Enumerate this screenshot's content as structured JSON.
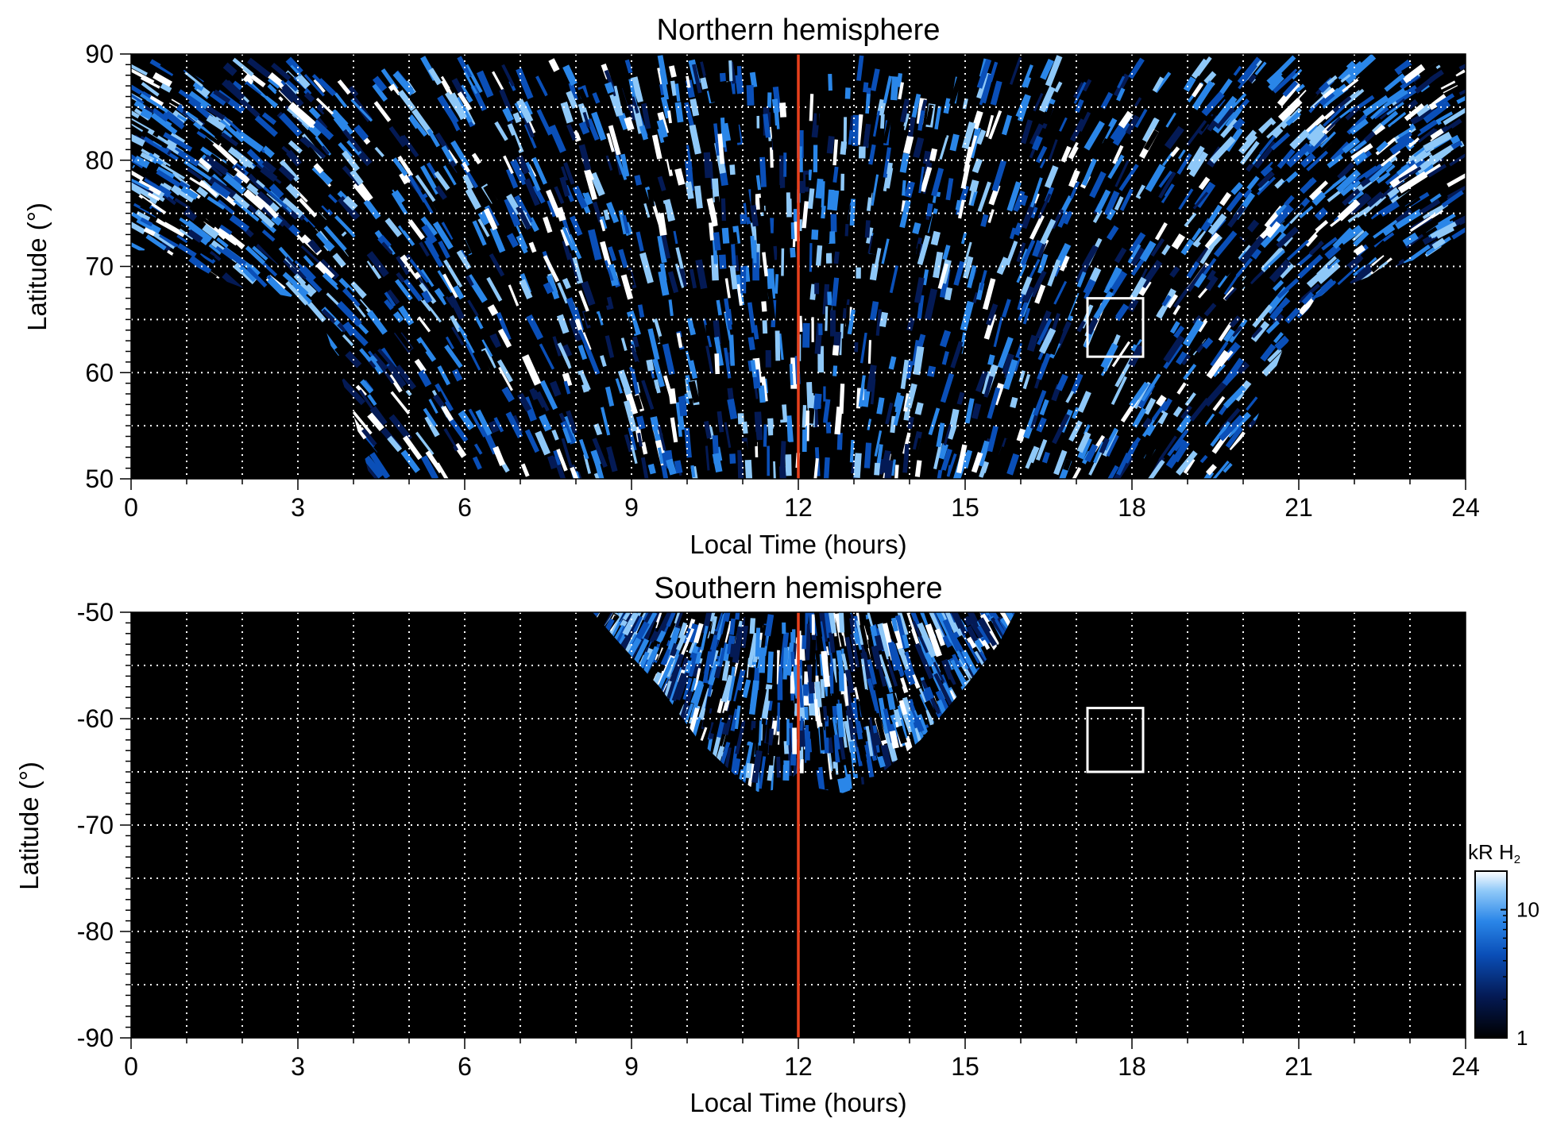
{
  "chart_data": [
    {
      "type": "heatmap",
      "title": "Northern hemisphere",
      "xlabel": "Local Time (hours)",
      "ylabel": "Latitude (°)",
      "xlim": [
        0,
        24
      ],
      "ylim": [
        50,
        90
      ],
      "xticks": [
        0,
        3,
        6,
        9,
        12,
        15,
        18,
        21,
        24
      ],
      "yticks": [
        50,
        60,
        70,
        80,
        90
      ],
      "grid_x": [
        1,
        2,
        3,
        4,
        5,
        6,
        7,
        8,
        9,
        10,
        11,
        12,
        13,
        14,
        15,
        16,
        17,
        18,
        19,
        20,
        21,
        22,
        23
      ],
      "grid_y": [
        55,
        60,
        65,
        70,
        75,
        80,
        85
      ],
      "grid": true,
      "noon_line_lt": 12,
      "noon_line_color": "#e8401c",
      "highlight_box": {
        "lt": [
          17.2,
          18.2
        ],
        "lat": [
          61.5,
          67
        ]
      },
      "coverage": {
        "inner_edge": [
          [
            0,
            71.5
          ],
          [
            0.5,
            71.5
          ],
          [
            1,
            70.5
          ],
          [
            1.5,
            69
          ],
          [
            2,
            68
          ],
          [
            2.5,
            67.5
          ],
          [
            3,
            67
          ],
          [
            3.5,
            64
          ],
          [
            4,
            56
          ],
          [
            4.3,
            50
          ],
          [
            19.8,
            50
          ],
          [
            20.2,
            55
          ],
          [
            20.7,
            62
          ],
          [
            21.3,
            67
          ],
          [
            22,
            68.5
          ],
          [
            23,
            70.5
          ],
          [
            24,
            71.5
          ]
        ],
        "outer_edge": 89
      }
    },
    {
      "type": "heatmap",
      "title": "Southern hemisphere",
      "xlabel": "Local Time (hours)",
      "ylabel": "Latitude (°)",
      "xlim": [
        0,
        24
      ],
      "ylim": [
        -90,
        -50
      ],
      "xticks": [
        0,
        3,
        6,
        9,
        12,
        15,
        18,
        21,
        24
      ],
      "yticks": [
        -50,
        -60,
        -70,
        -80,
        -90
      ],
      "grid_x": [
        1,
        2,
        3,
        4,
        5,
        6,
        7,
        8,
        9,
        10,
        11,
        12,
        13,
        14,
        15,
        16,
        17,
        18,
        19,
        20,
        21,
        22,
        23
      ],
      "grid_y": [
        -55,
        -60,
        -65,
        -70,
        -75,
        -80,
        -85
      ],
      "grid": true,
      "noon_line_lt": 12,
      "noon_line_color": "#e8401c",
      "highlight_box": {
        "lt": [
          17.2,
          18.2
        ],
        "lat": [
          -65,
          -59
        ]
      },
      "coverage": {
        "lower_edge": [
          [
            8.3,
            -50
          ],
          [
            8.8,
            -53
          ],
          [
            9.5,
            -57
          ],
          [
            10.2,
            -62
          ],
          [
            10.9,
            -65.5
          ],
          [
            11.3,
            -67
          ],
          [
            11.7,
            -66.5
          ],
          [
            12,
            -65
          ],
          [
            12.3,
            -66.5
          ],
          [
            12.8,
            -67
          ],
          [
            13.3,
            -66
          ],
          [
            14.2,
            -62
          ],
          [
            15,
            -57
          ],
          [
            15.6,
            -53
          ],
          [
            15.9,
            -50
          ]
        ]
      }
    }
  ],
  "colorbar": {
    "label": "kR H",
    "label_subscript": "2",
    "scale": "log",
    "range": [
      1,
      20
    ],
    "ticks": [
      1,
      10
    ],
    "tick_labels": [
      "1",
      "10"
    ],
    "colors": [
      "#000000",
      "#041a55",
      "#0a4fb8",
      "#2a86e8",
      "#8ec8f8",
      "#ffffff"
    ]
  }
}
